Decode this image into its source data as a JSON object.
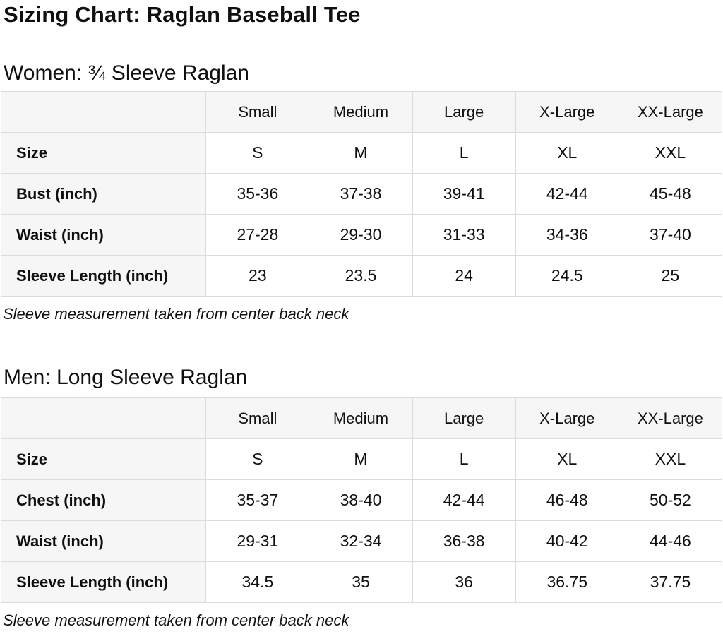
{
  "page": {
    "title": "Sizing Chart: Raglan Baseball Tee"
  },
  "colors": {
    "header_background": "#f6f6f6",
    "border": "#dcdcdc",
    "text": "#0f1111"
  },
  "sections": [
    {
      "heading": "Women: ¾ Sleeve Raglan",
      "note": "Sleeve measurement taken from center back neck",
      "table": {
        "columns": [
          "",
          "Small",
          "Medium",
          "Large",
          "X-Large",
          "XX-Large"
        ],
        "rows": [
          {
            "label": "Size",
            "values": [
              "S",
              "M",
              "L",
              "XL",
              "XXL"
            ]
          },
          {
            "label": "Bust (inch)",
            "values": [
              "35-36",
              "37-38",
              "39-41",
              "42-44",
              "45-48"
            ]
          },
          {
            "label": "Waist (inch)",
            "values": [
              "27-28",
              "29-30",
              "31-33",
              "34-36",
              "37-40"
            ]
          },
          {
            "label": "Sleeve Length (inch)",
            "values": [
              "23",
              "23.5",
              "24",
              "24.5",
              "25"
            ]
          }
        ]
      }
    },
    {
      "heading": "Men: Long Sleeve Raglan",
      "note": "Sleeve measurement taken from center back neck",
      "table": {
        "columns": [
          "",
          "Small",
          "Medium",
          "Large",
          "X-Large",
          "XX-Large"
        ],
        "rows": [
          {
            "label": "Size",
            "values": [
              "S",
              "M",
              "L",
              "XL",
              "XXL"
            ]
          },
          {
            "label": "Chest (inch)",
            "values": [
              "35-37",
              "38-40",
              "42-44",
              "46-48",
              "50-52"
            ]
          },
          {
            "label": "Waist (inch)",
            "values": [
              "29-31",
              "32-34",
              "36-38",
              "40-42",
              "44-46"
            ]
          },
          {
            "label": "Sleeve Length (inch)",
            "values": [
              "34.5",
              "35",
              "36",
              "36.75",
              "37.75"
            ]
          }
        ]
      }
    }
  ]
}
